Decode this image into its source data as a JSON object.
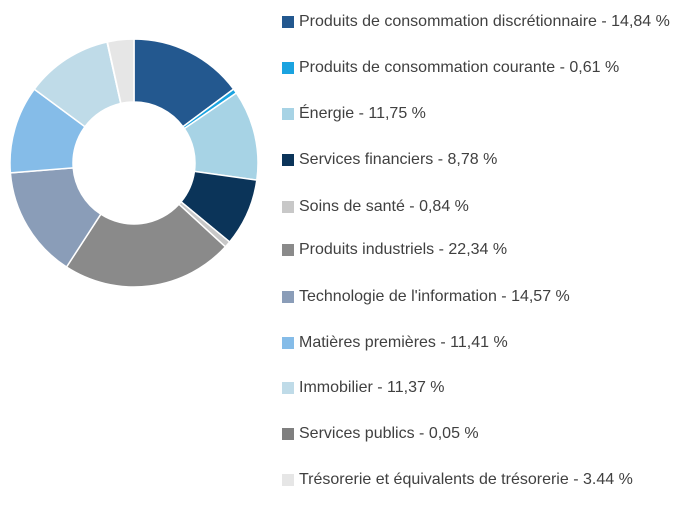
{
  "chart_data": {
    "type": "donut",
    "categories": [
      "Produits de consommation discrétionnaire - 14,84 %",
      "Produits de consommation courante - 0,61 %",
      "Énergie - 11,75 %",
      "Services financiers - 8,78 %",
      "Soins de santé - 0,84 %",
      "Produits industriels - 22,34 %",
      "Technologie de l'information - 14,57 %",
      "Matières premières - 11,41 %",
      "Immobilier - 11,37 %",
      "Services publics - 0,05 %",
      "Trésorerie et équivalents de trésorerie - 3.44 %"
    ],
    "values": [
      14.84,
      0.61,
      11.75,
      8.78,
      0.84,
      22.34,
      14.57,
      11.41,
      11.37,
      0.05,
      3.44
    ],
    "colors": [
      "#23588f",
      "#1aa3e0",
      "#a7d3e5",
      "#0b3459",
      "#c8c8c8",
      "#8a8a8a",
      "#8a9db8",
      "#85bce8",
      "#bfdbe8",
      "#7f7f7f",
      "#e6e6e6"
    ],
    "legend": "right"
  }
}
